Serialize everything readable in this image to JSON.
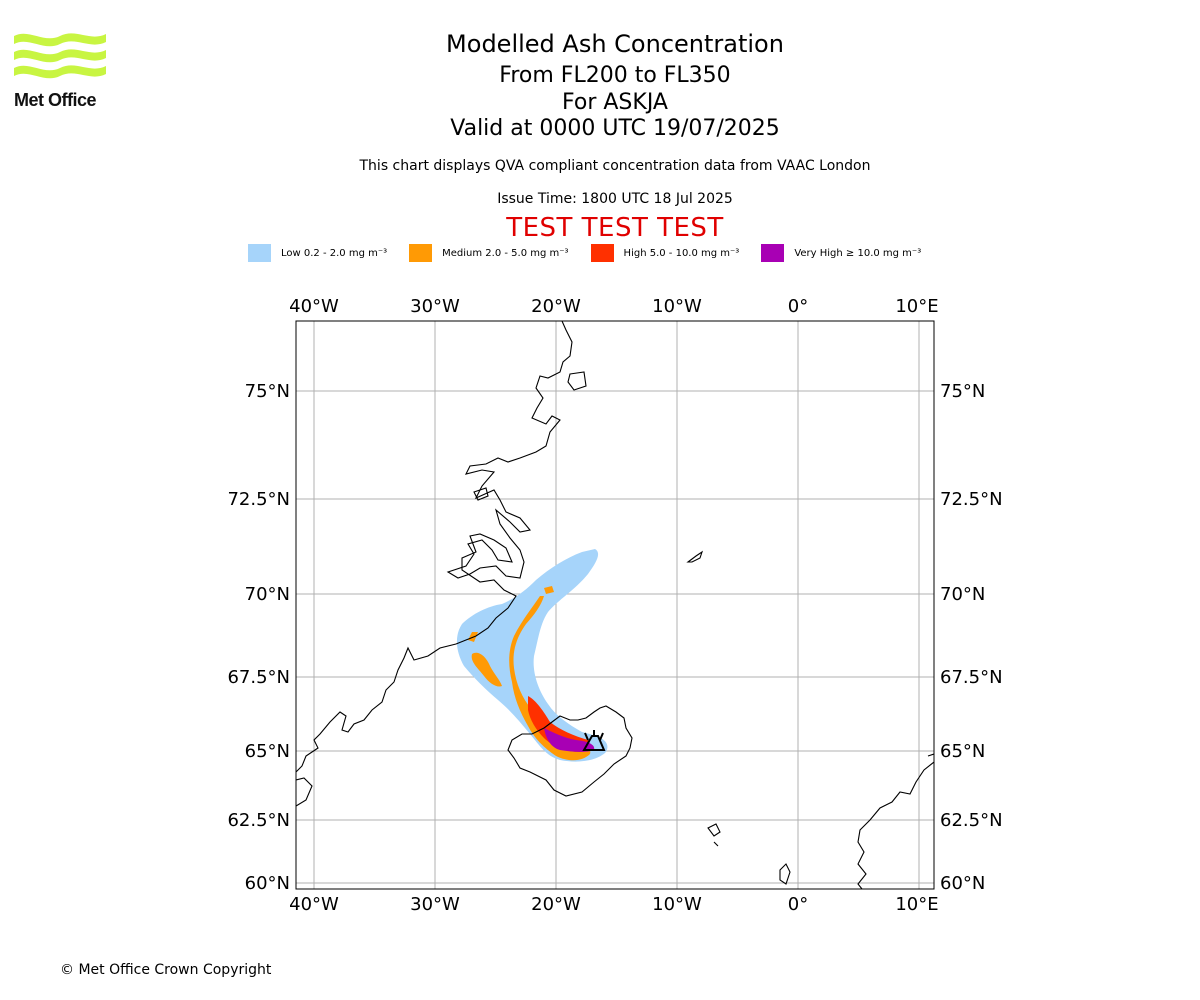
{
  "logo": {
    "name": "met-office-logo",
    "text": "Met Office",
    "color": "#c8f542"
  },
  "title": {
    "main": "Modelled Ash Concentration",
    "levels": "From FL200 to FL350",
    "volcano": "For ASKJA",
    "valid": "Valid at 0000 UTC 19/07/2025"
  },
  "subtitle": "This chart displays QVA compliant concentration data from VAAC London",
  "issue_time": "Issue Time: 1800 UTC 18 Jul 2025",
  "test_banner": "TEST TEST TEST",
  "legend": [
    {
      "label": "Low 0.2 - 2.0 mg m⁻³",
      "color": "#a6d4fa"
    },
    {
      "label": "Medium 2.0 - 5.0 mg m⁻³",
      "color": "#ff9a05"
    },
    {
      "label": "High 5.0 - 10.0 mg m⁻³",
      "color": "#ff3000"
    },
    {
      "label": "Very High ≥ 10.0 mg m⁻³",
      "color": "#a800b4"
    }
  ],
  "map": {
    "lon_ticks": [
      "40°W",
      "30°W",
      "20°W",
      "10°W",
      "0°",
      "10°E"
    ],
    "lat_ticks": [
      "75°N",
      "72.5°N",
      "70°N",
      "67.5°N",
      "65°N",
      "62.5°N",
      "60°N"
    ],
    "grid_color": "#b0b0b0",
    "source_marker": "volcano-icon"
  },
  "copyright": "© Met Office Crown Copyright"
}
